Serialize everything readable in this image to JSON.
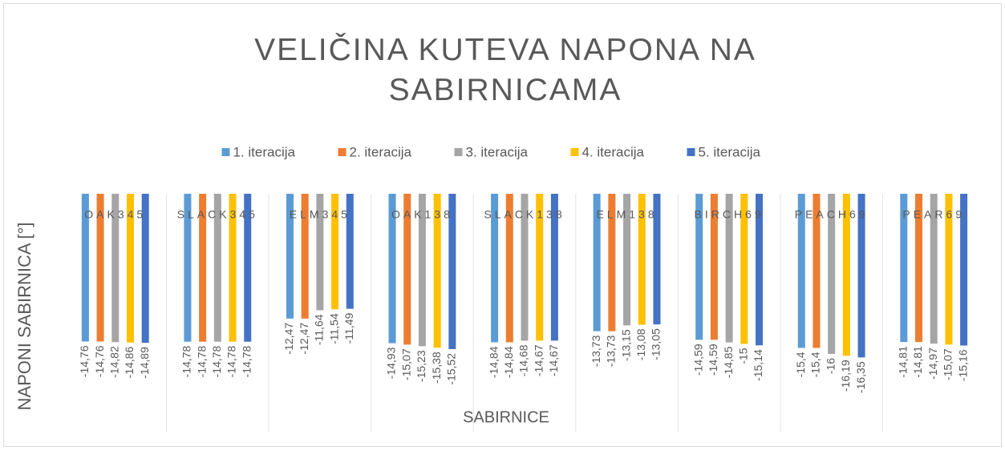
{
  "chart_data": {
    "type": "bar",
    "title": "VELIČINA KUTEVA NAPONA NA SABIRNICAMA",
    "x_label": "SABIRNICE",
    "y_label": "NAPONI SABIRNICA [°]",
    "categories": [
      "OAK345",
      "SLACK345",
      "ELM345",
      "OAK138",
      "SLACK138",
      "ELM138",
      "BIRCH69",
      "PEACH69",
      "PEAR69"
    ],
    "ylim": [
      -18,
      0
    ],
    "grid": true,
    "legend": "top",
    "series": [
      {
        "name": "1. iteracija",
        "color": "#5b9bd5",
        "values": [
          -14.76,
          -14.78,
          -12.47,
          -14.93,
          -14.84,
          -13.73,
          -14.59,
          -15.4,
          -14.81
        ],
        "value_labels": [
          "-14,76",
          "-14,78",
          "-12,47",
          "-14,93",
          "-14,84",
          "-13,73",
          "-14,59",
          "-15,4",
          "-14,81"
        ]
      },
      {
        "name": "2. iteracija",
        "color": "#ed7d31",
        "values": [
          -14.76,
          -14.78,
          -12.47,
          -15.07,
          -14.84,
          -13.73,
          -14.59,
          -15.4,
          -14.81
        ],
        "value_labels": [
          "-14,76",
          "-14,78",
          "-12,47",
          "-15,07",
          "-14,84",
          "-13,73",
          "-14,59",
          "-15,4",
          "-14,81"
        ]
      },
      {
        "name": "3. iteracija",
        "color": "#a5a5a5",
        "values": [
          -14.82,
          -14.78,
          -11.64,
          -15.23,
          -14.68,
          -13.15,
          -14.85,
          -16,
          -14.97
        ],
        "value_labels": [
          "-14,82",
          "-14,78",
          "-11,64",
          "-15,23",
          "-14,68",
          "-13,15",
          "-14,85",
          "-16",
          "-14,97"
        ]
      },
      {
        "name": "4. iteracija",
        "color": "#ffc000",
        "values": [
          -14.86,
          -14.78,
          -11.54,
          -15.38,
          -14.67,
          -13.08,
          -15,
          -16.19,
          -15.07
        ],
        "value_labels": [
          "-14,86",
          "-14,78",
          "-11,54",
          "-15,38",
          "-14,67",
          "-13,08",
          "-15",
          "-16,19",
          "-15,07"
        ]
      },
      {
        "name": "5. iteracija",
        "color": "#4472c4",
        "values": [
          -14.89,
          -14.78,
          -11.49,
          -15.52,
          -14.67,
          -13.05,
          -15.14,
          -16.35,
          -15.16
        ],
        "value_labels": [
          "-14,89",
          "-14,78",
          "-11,49",
          "-15,52",
          "-14,67",
          "-13,05",
          "-15,14",
          "-16,35",
          "-15,16"
        ]
      }
    ]
  }
}
